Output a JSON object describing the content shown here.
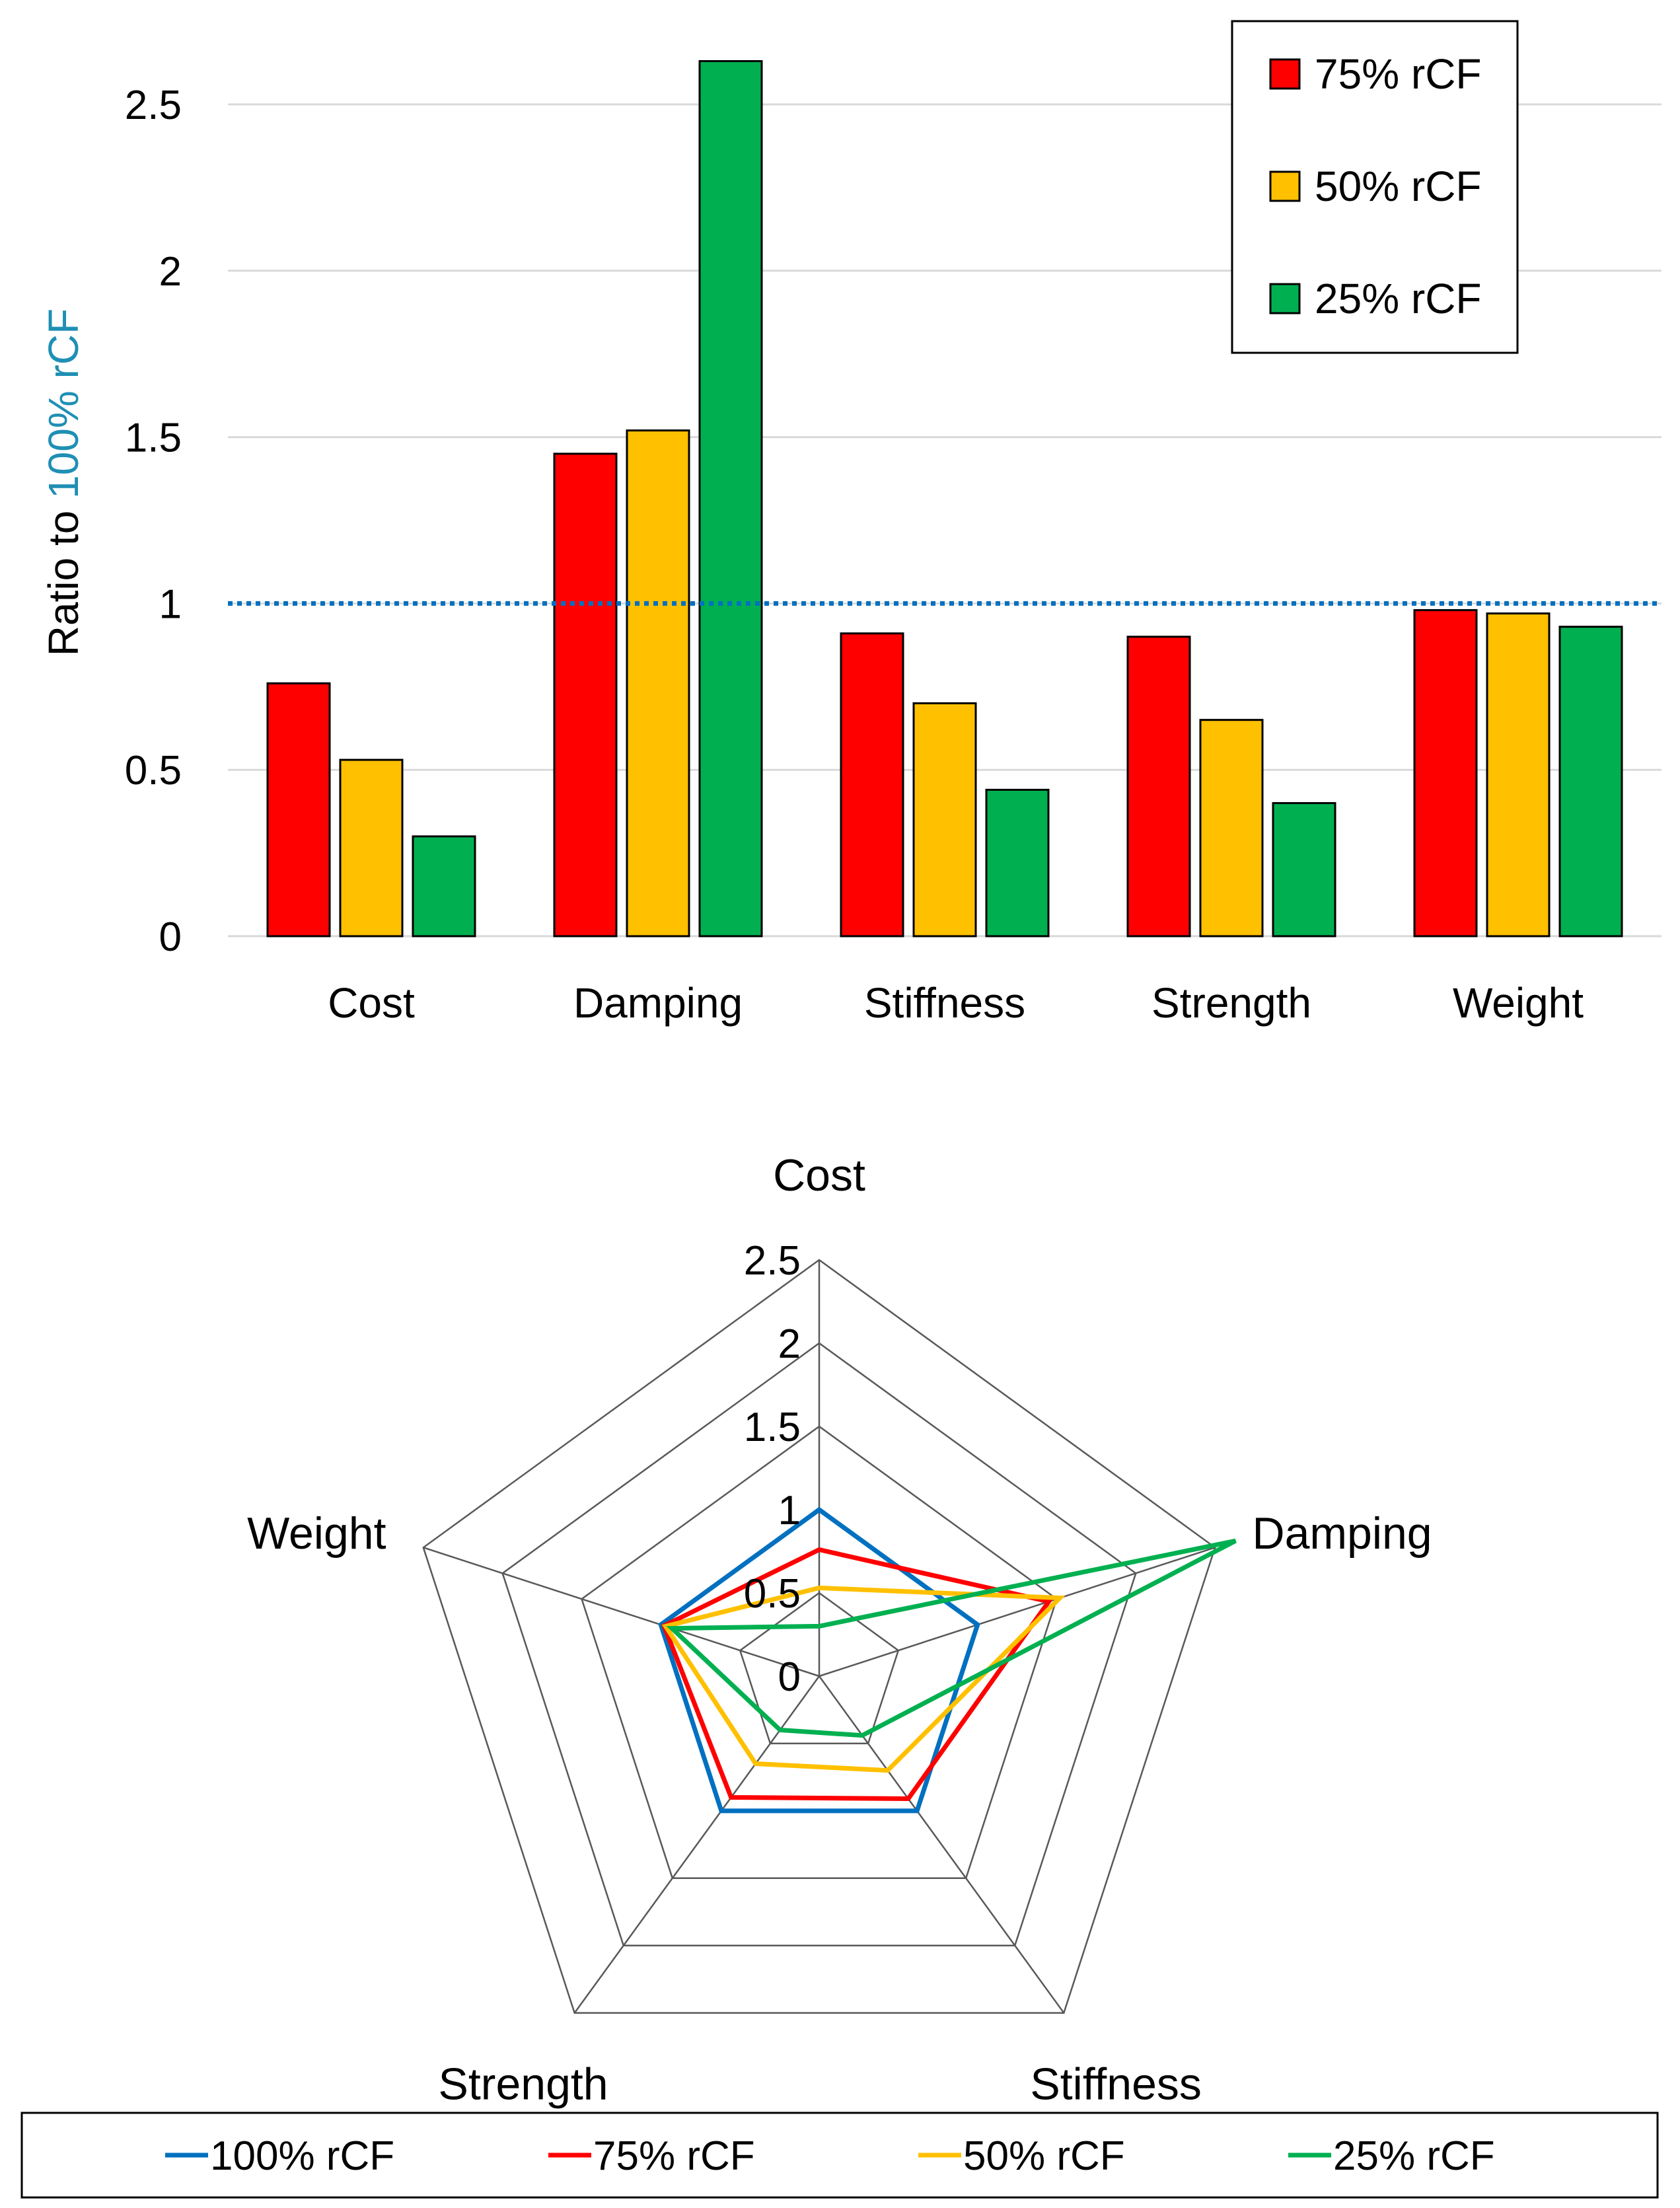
{
  "chart_data": [
    {
      "type": "bar",
      "ylabel_prefix": "Ratio to ",
      "ylabel_highlight": "100% rCF",
      "ylabel_highlight_color": "#1f8fb4",
      "categories": [
        "Cost",
        "Damping",
        "Stiffness",
        "Strength",
        "Weight"
      ],
      "series": [
        {
          "name": "75% rCF",
          "color": "#ff0000",
          "values": [
            0.76,
            1.45,
            0.91,
            0.9,
            0.98
          ]
        },
        {
          "name": "50% rCF",
          "color": "#ffc000",
          "values": [
            0.53,
            1.52,
            0.7,
            0.65,
            0.97
          ]
        },
        {
          "name": "25% rCF",
          "color": "#00b050",
          "values": [
            0.3,
            2.63,
            0.44,
            0.4,
            0.93
          ]
        }
      ],
      "ylim": [
        0,
        2.5
      ],
      "yticks": [
        "0",
        "0.5",
        "1",
        "1.5",
        "2",
        "2.5"
      ],
      "reference_line": {
        "value": 1,
        "color": "#0070c0",
        "style": "dotted"
      },
      "grid": true,
      "legend_position": "top-right"
    },
    {
      "type": "radar",
      "axes": [
        "Cost",
        "Damping",
        "Stiffness",
        "Strength",
        "Weight"
      ],
      "rlim": [
        0,
        2.5
      ],
      "rticks": [
        "0",
        "0.5",
        "1",
        "1.5",
        "2",
        "2.5"
      ],
      "series": [
        {
          "name": "100% rCF",
          "color": "#0070c0",
          "values": [
            1.0,
            1.0,
            1.0,
            1.0,
            1.0
          ]
        },
        {
          "name": "75% rCF",
          "color": "#ff0000",
          "values": [
            0.76,
            1.45,
            0.91,
            0.9,
            0.98
          ]
        },
        {
          "name": "50% rCF",
          "color": "#ffc000",
          "values": [
            0.53,
            1.52,
            0.7,
            0.65,
            0.97
          ]
        },
        {
          "name": "25% rCF",
          "color": "#00b050",
          "values": [
            0.3,
            2.63,
            0.44,
            0.4,
            0.93
          ]
        }
      ],
      "legend_position": "bottom"
    }
  ]
}
